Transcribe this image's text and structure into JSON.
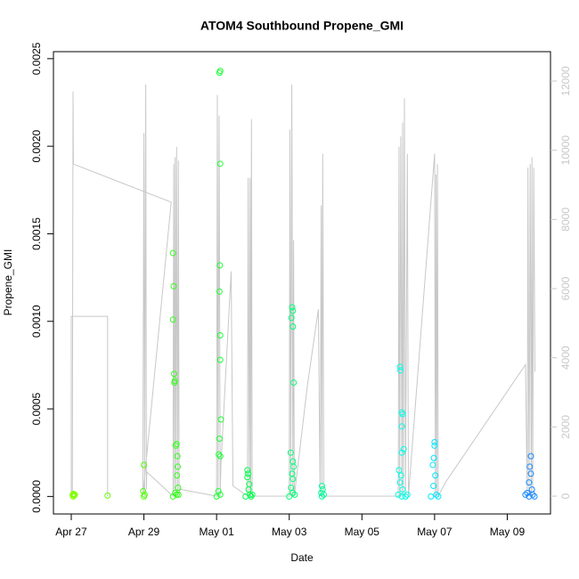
{
  "chart_data": {
    "type": "scatter",
    "title": "ATOM4 Southbound Propene_GMI",
    "x_label": "Date",
    "y_label": "Propene_GMI",
    "xlim": [
      -0.49,
      13.19
    ],
    "xticks": [
      {
        "value": 0,
        "label": "Apr 27"
      },
      {
        "value": 2,
        "label": "Apr 29"
      },
      {
        "value": 4,
        "label": "May 01"
      },
      {
        "value": 6,
        "label": "May 03"
      },
      {
        "value": 8,
        "label": "May 05"
      },
      {
        "value": 10,
        "label": "May 07"
      },
      {
        "value": 12,
        "label": "May 09"
      }
    ],
    "ylim": [
      -0.0001,
      0.00254
    ],
    "yticks": [
      {
        "value": 0,
        "label": "0.0000"
      },
      {
        "value": 0.0005,
        "label": "0.0005"
      },
      {
        "value": 0.001,
        "label": "0.0010"
      },
      {
        "value": 0.0015,
        "label": "0.0015"
      },
      {
        "value": 0.002,
        "label": "0.0020"
      },
      {
        "value": 0.0025,
        "label": "0.0025"
      }
    ],
    "y2lim": [
      -515,
      12850
    ],
    "y2ticks": [
      0,
      2000,
      4000,
      6000,
      8000,
      10000,
      12000
    ],
    "y2_color": "#c8c8c8",
    "series": [
      {
        "axis": "y2",
        "color": "#c8c8c8",
        "x": [
          0,
          0,
          1.0,
          1.0,
          null,
          0.03,
          0.05,
          0.06,
          2.75,
          1.97,
          2.0,
          2.02,
          2.05,
          2.07,
          2.08,
          2.8,
          2.82,
          2.84,
          2.86,
          2.88,
          2.9,
          2.93,
          2.95,
          2.97,
          3.0,
          4.0,
          4.02,
          4.04,
          4.07,
          4.1,
          4.12,
          4.4,
          4.45,
          4.85,
          4.87,
          4.9,
          4.92,
          4.94,
          4.96,
          4.98,
          6.0,
          6.02,
          6.04,
          6.07,
          6.1,
          6.12,
          6.14,
          6.5,
          6.8,
          6.85,
          6.88,
          6.9,
          6.92,
          6.95,
          9.0,
          9.02,
          9.04,
          9.07,
          9.1,
          9.12,
          9.14,
          9.17,
          9.2,
          9.25,
          9.28,
          10.0,
          10.02,
          10.04,
          10.06,
          10.08,
          10.1,
          10.3,
          12.5,
          12.55,
          12.57,
          12.6,
          12.63,
          12.66,
          12.68,
          12.7,
          12.73,
          12.76
        ],
        "values": [
          0,
          5200,
          5200,
          0,
          null,
          0,
          11700,
          9600,
          8500,
          0,
          10500,
          0,
          11900,
          200,
          700,
          0,
          9600,
          0,
          9800,
          0,
          10100,
          0,
          9700,
          0,
          200,
          0,
          11600,
          0,
          11000,
          0,
          900,
          6500,
          300,
          0,
          9200,
          0,
          9200,
          0,
          10900,
          0,
          0,
          10600,
          0,
          11900,
          0,
          7400,
          0,
          3200,
          5400,
          0,
          8400,
          0,
          9900,
          0,
          0,
          10100,
          0,
          10400,
          0,
          10800,
          0,
          11500,
          0,
          9900,
          0,
          9900,
          0,
          9300,
          0,
          9600,
          0,
          400,
          3800,
          0,
          9500,
          0,
          9600,
          0,
          9800,
          0,
          9500,
          3600
        ]
      }
    ],
    "points": [
      {
        "color": "#80ff00",
        "x": [
          0.04,
          0.06,
          0.08,
          0.1,
          0.05
        ],
        "values": [
          1e-05,
          1.5e-05,
          5e-06,
          1e-05,
          0
        ]
      },
      {
        "color": "#66ff00",
        "x": [
          1.0
        ],
        "values": [
          5e-06
        ]
      },
      {
        "color": "#4cff00",
        "x": [
          2.0,
          1.98,
          2.02,
          2.0
        ],
        "values": [
          0.00018,
          3e-05,
          1e-05,
          0
        ]
      },
      {
        "color": "#33ff1a",
        "x": [
          2.8,
          2.82,
          2.8,
          2.83,
          2.85,
          2.84,
          2.9,
          2.88,
          2.92,
          2.93,
          2.91,
          2.94,
          2.86,
          2.9,
          2.95,
          2.8
        ],
        "values": [
          0.00139,
          0.0012,
          0.00101,
          0.0007,
          0.00066,
          0.00065,
          0.0003,
          0.00029,
          0.00023,
          0.00017,
          0.00012,
          5e-05,
          2e-05,
          1e-05,
          1e-05,
          0
        ]
      },
      {
        "color": "#1aff33",
        "x": [
          4.08,
          4.1,
          4.1,
          4.09,
          4.08,
          4.1,
          4.1,
          4.12,
          4.08,
          4.06,
          4.1,
          4.05,
          4.1,
          4.0
        ],
        "values": [
          0.00242,
          0.00243,
          0.0019,
          0.00132,
          0.00117,
          0.00092,
          0.00078,
          0.00044,
          0.00033,
          0.00024,
          0.00023,
          3e-05,
          1e-05,
          0
        ]
      },
      {
        "color": "#00ff4c",
        "x": [
          4.85,
          4.87,
          4.85,
          4.9,
          4.88,
          4.92,
          4.95,
          4.8,
          4.98
        ],
        "values": [
          0.00015,
          0.00013,
          0.00011,
          7e-05,
          4e-05,
          1e-05,
          0,
          0,
          1e-05
        ]
      },
      {
        "color": "#00ff77",
        "x": [
          6.08,
          6.1,
          6.06,
          6.1,
          6.12,
          6.04,
          6.1,
          6.12,
          6.08,
          6.1,
          6.05,
          6.1,
          6.0,
          6.15
        ],
        "values": [
          0.00108,
          0.00106,
          0.00102,
          0.00097,
          0.00065,
          0.00025,
          0.0002,
          0.00017,
          0.00013,
          0.0001,
          5e-05,
          2e-05,
          0,
          1e-05
        ]
      },
      {
        "color": "#00ff99",
        "x": [
          6.9,
          6.92,
          6.88,
          6.9,
          6.95
        ],
        "values": [
          6e-05,
          4e-05,
          2e-05,
          0,
          1e-05
        ]
      },
      {
        "color": "#00ffe6",
        "x": [
          9.05,
          9.06,
          9.1,
          9.12,
          9.1,
          9.15,
          9.1,
          9.02,
          9.08,
          9.05,
          9.12,
          9.0,
          9.1,
          9.2,
          9.25
        ],
        "values": [
          0.00074,
          0.00072,
          0.00048,
          0.00047,
          0.0004,
          0.00027,
          0.00025,
          0.00015,
          0.00012,
          8e-05,
          4e-05,
          1e-05,
          0,
          0,
          1e-05
        ]
      },
      {
        "color": "#00e6ff",
        "x": [
          10.0,
          10.0,
          9.98,
          9.95,
          10.02,
          9.97,
          10.05,
          9.9,
          10.1
        ],
        "values": [
          0.00031,
          0.00029,
          0.00022,
          0.00018,
          0.00012,
          6e-05,
          1e-05,
          0,
          0
        ]
      },
      {
        "color": "#1a8cff",
        "x": [
          12.65,
          12.62,
          12.65,
          12.6,
          12.68,
          12.55,
          12.7,
          12.6,
          12.75,
          12.5
        ],
        "values": [
          0.00023,
          0.00017,
          0.00013,
          8e-05,
          4e-05,
          2e-05,
          1e-05,
          0,
          0,
          1e-05
        ]
      }
    ]
  }
}
